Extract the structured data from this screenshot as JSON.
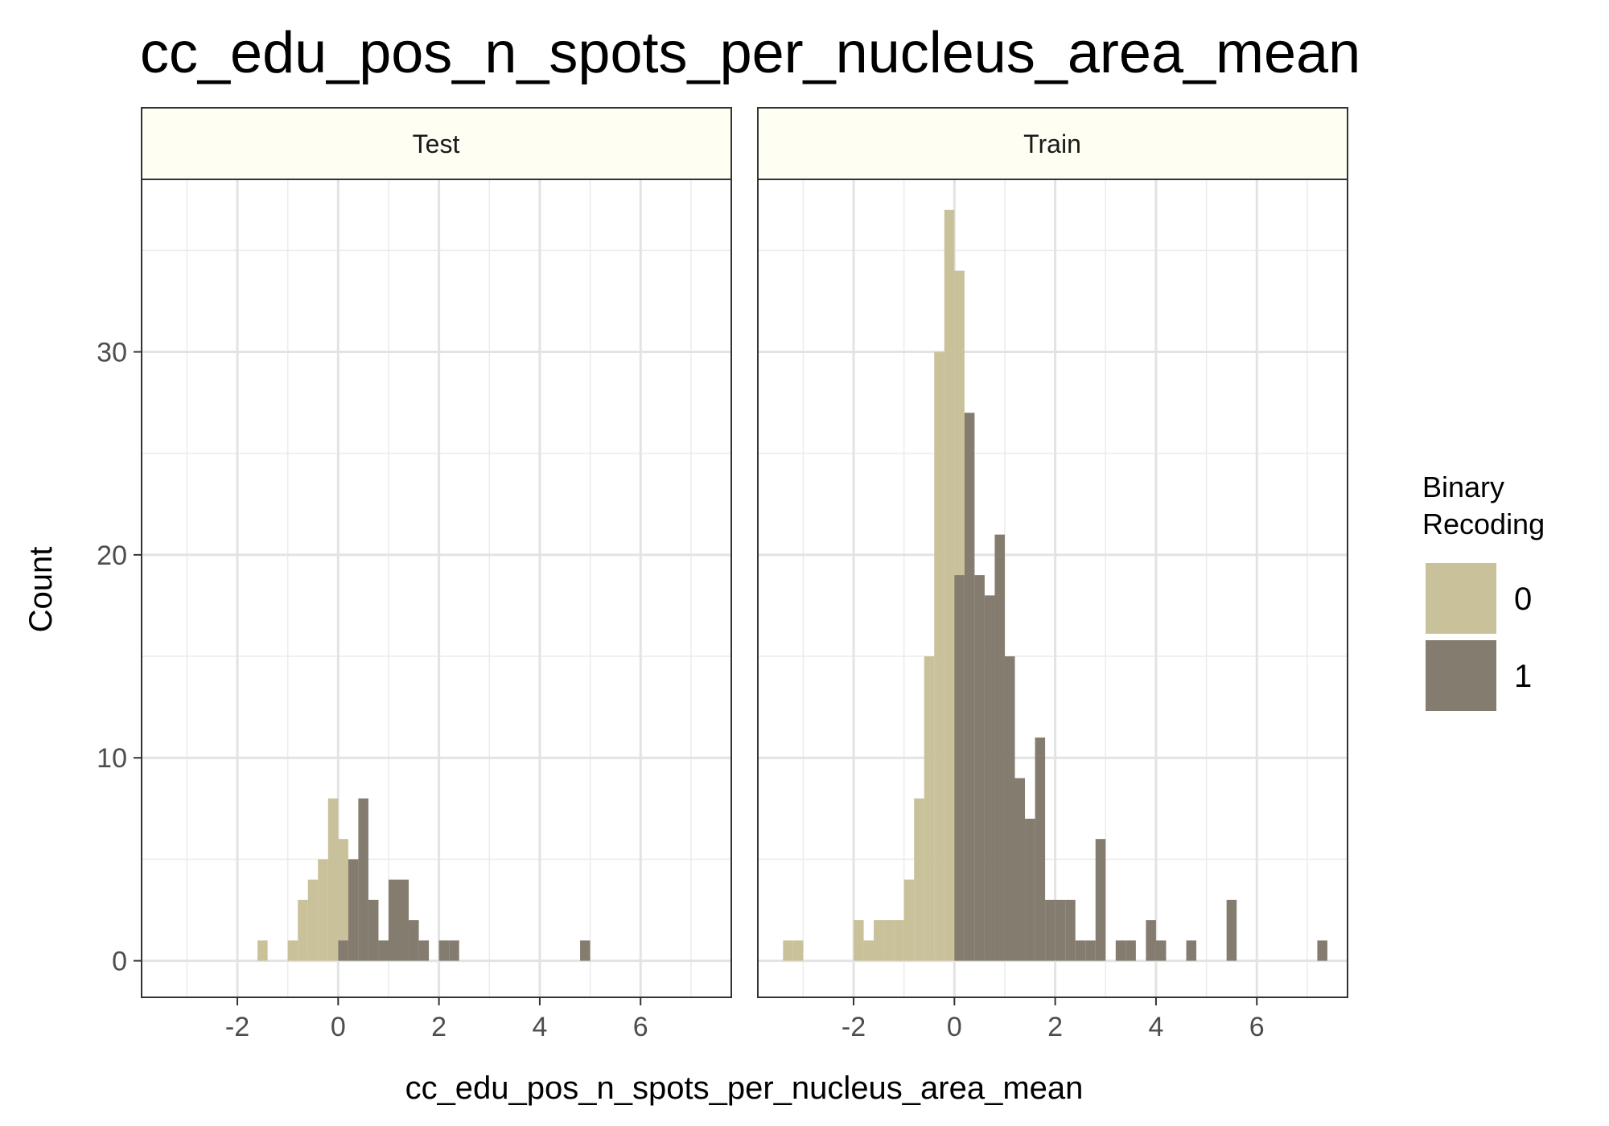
{
  "chart_data": {
    "type": "bar",
    "title": "cc_edu_pos_n_spots_per_nucleus_area_mean",
    "xlabel": "cc_edu_pos_n_spots_per_nucleus_area_mean",
    "ylabel": "Count",
    "xlim": [
      -3.9,
      7.8
    ],
    "ylim": [
      -1.8,
      38.5
    ],
    "x_ticks": [
      -2,
      0,
      2,
      4,
      6
    ],
    "y_ticks": [
      0,
      10,
      20,
      30
    ],
    "bin_width": 0.2,
    "grid": true,
    "facets": [
      "Test",
      "Train"
    ],
    "legend": {
      "title_lines": [
        "Binary",
        "Recoding"
      ],
      "position": "right",
      "entries": [
        {
          "label": "0",
          "color": "#c9c199"
        },
        {
          "label": "1",
          "color": "#857c70"
        }
      ]
    },
    "series": [
      {
        "name": "0",
        "color": "#c9c199",
        "Test": [
          [
            -1.5,
            1
          ],
          [
            -0.9,
            1
          ],
          [
            -0.7,
            3
          ],
          [
            -0.5,
            4
          ],
          [
            -0.3,
            5
          ],
          [
            -0.1,
            8
          ],
          [
            0.1,
            6
          ]
        ],
        "Train": [
          [
            -3.3,
            1
          ],
          [
            -3.1,
            1
          ],
          [
            -1.9,
            2
          ],
          [
            -1.7,
            1
          ],
          [
            -1.5,
            2
          ],
          [
            -1.3,
            2
          ],
          [
            -1.1,
            2
          ],
          [
            -0.9,
            4
          ],
          [
            -0.7,
            8
          ],
          [
            -0.5,
            15
          ],
          [
            -0.3,
            30
          ],
          [
            -0.1,
            37
          ],
          [
            0.1,
            34
          ]
        ]
      },
      {
        "name": "1",
        "color": "#857c70",
        "Test": [
          [
            0.1,
            1
          ],
          [
            0.3,
            5
          ],
          [
            0.5,
            8
          ],
          [
            0.7,
            3
          ],
          [
            0.9,
            1
          ],
          [
            1.1,
            4
          ],
          [
            1.3,
            4
          ],
          [
            1.5,
            2
          ],
          [
            1.7,
            1
          ],
          [
            2.1,
            1
          ],
          [
            2.3,
            1
          ],
          [
            4.9,
            1
          ]
        ],
        "Train": [
          [
            0.1,
            19
          ],
          [
            0.3,
            27
          ],
          [
            0.5,
            19
          ],
          [
            0.7,
            18
          ],
          [
            0.9,
            21
          ],
          [
            1.1,
            15
          ],
          [
            1.3,
            9
          ],
          [
            1.5,
            7
          ],
          [
            1.7,
            11
          ],
          [
            1.9,
            3
          ],
          [
            2.1,
            3
          ],
          [
            2.3,
            3
          ],
          [
            2.5,
            1
          ],
          [
            2.7,
            1
          ],
          [
            2.9,
            6
          ],
          [
            3.3,
            1
          ],
          [
            3.5,
            1
          ],
          [
            3.9,
            2
          ],
          [
            4.1,
            1
          ],
          [
            4.7,
            1
          ],
          [
            5.5,
            3
          ],
          [
            7.3,
            1
          ]
        ]
      }
    ]
  }
}
